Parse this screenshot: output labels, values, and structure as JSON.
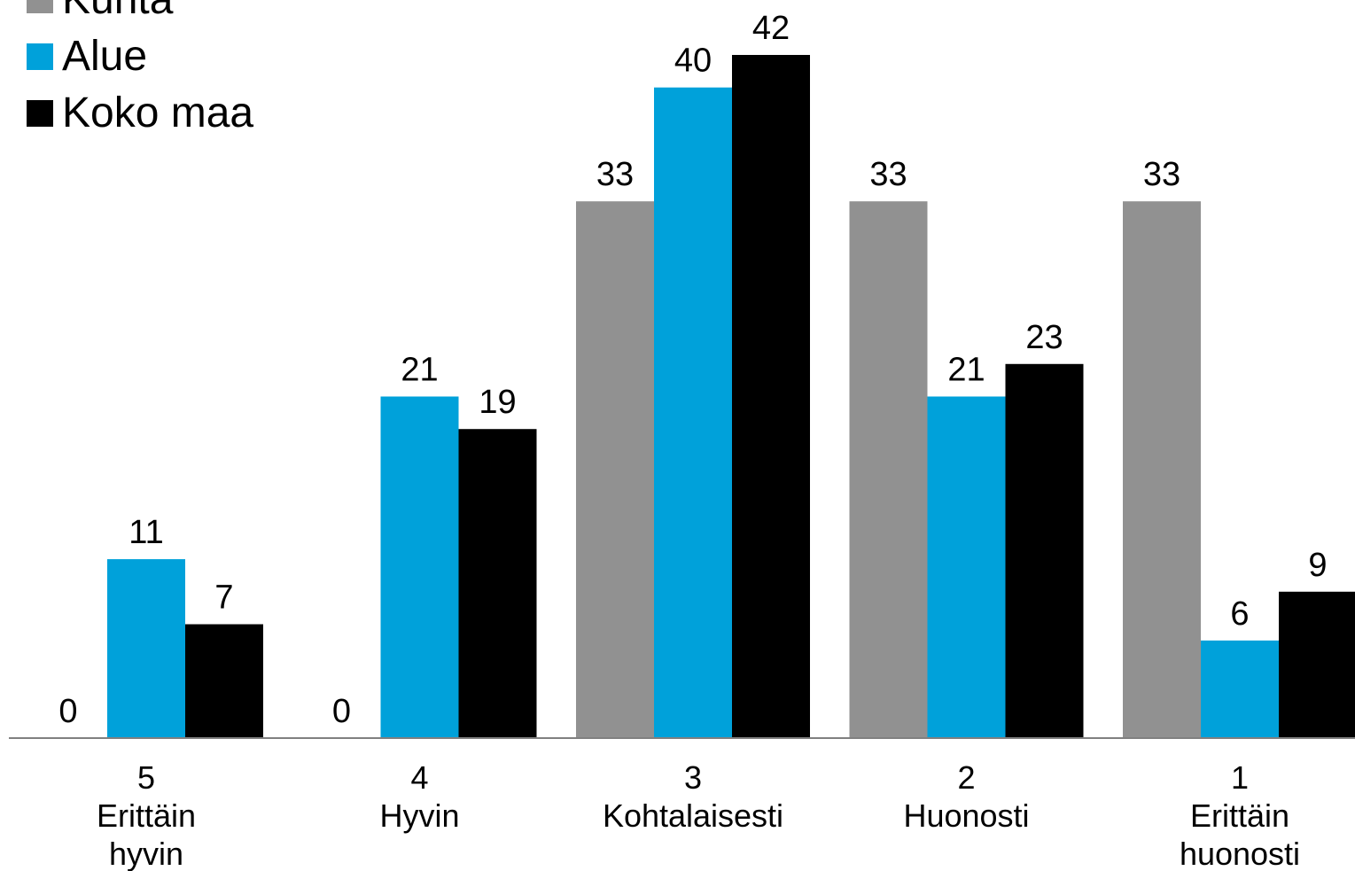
{
  "chart_data": {
    "type": "bar",
    "categories": [
      [
        "5",
        "Erittäin",
        "hyvin"
      ],
      [
        "4",
        "Hyvin"
      ],
      [
        "3",
        "Kohtalaisesti"
      ],
      [
        "2",
        "Huonosti"
      ],
      [
        "1",
        "Erittäin",
        "huonosti"
      ]
    ],
    "series": [
      {
        "name": "Kunta",
        "color": "#919191",
        "values": [
          0,
          0,
          33,
          33,
          33
        ]
      },
      {
        "name": "Alue",
        "color": "#00a1da",
        "values": [
          11,
          21,
          40,
          21,
          6
        ]
      },
      {
        "name": "Koko maa",
        "color": "#000000",
        "values": [
          7,
          19,
          42,
          23,
          9
        ]
      }
    ],
    "ylim": [
      0,
      45
    ],
    "grid": false,
    "legend_position": "top-left",
    "data_labels": true
  }
}
